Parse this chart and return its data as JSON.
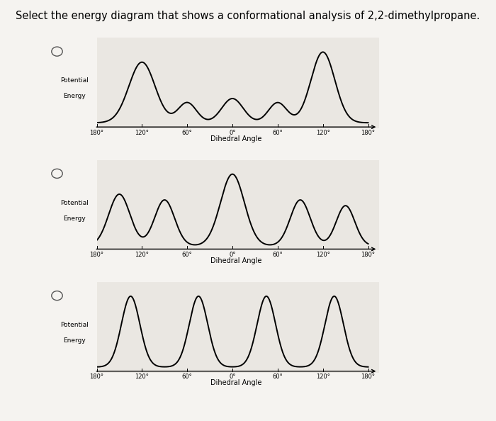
{
  "title": "Select the energy diagram that shows a conformational analysis of 2,2-dimethylpropane.",
  "title_fontsize": 10.5,
  "background_color": "#f5f3f0",
  "chart_bg": "#eae7e2",
  "xtick_labels": [
    "180°",
    "120°",
    "60°",
    "0°",
    "60°",
    "120°",
    "180°"
  ],
  "xlabel": "Dihedral Angle",
  "ylabel1": "Potential",
  "ylabel2": "Energy",
  "figsize": [
    7.0,
    5.94
  ],
  "dpi": 100
}
